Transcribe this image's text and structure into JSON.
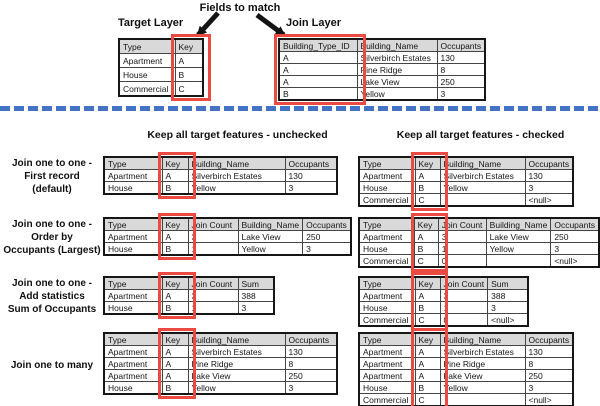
{
  "colors": {
    "highlight": "#ea4a42",
    "separator": "#4472c4",
    "header_fill": "#d9d9d9"
  },
  "top": {
    "fields_to_match_label": "Fields to match",
    "target_layer_label": "Target Layer",
    "join_layer_label": "Join Layer",
    "target_table": {
      "headers": [
        "Type",
        "Key"
      ],
      "rows": [
        [
          "Apartment",
          "A"
        ],
        [
          "House",
          "B"
        ],
        [
          "Commercial",
          "C"
        ]
      ]
    },
    "join_table": {
      "headers": [
        "Building_Type_ID",
        "Building_Name",
        "Occupants"
      ],
      "rows": [
        [
          "A",
          "Silverbirch Estates",
          "130"
        ],
        [
          "A",
          "Pine Ridge",
          "8"
        ],
        [
          "A",
          "Lake View",
          "250"
        ],
        [
          "B",
          "Yellow",
          "3"
        ]
      ]
    }
  },
  "section_headers": {
    "unchecked": "Keep all target features - unchecked",
    "checked": "Keep all target features - checked"
  },
  "join_examples": [
    {
      "label_lines": [
        "Join one to one -",
        "First record",
        "(default)"
      ],
      "unchecked_table": {
        "headers": [
          "Type",
          "Key",
          "Building_Name",
          "Occupants"
        ],
        "rows": [
          [
            "Apartment",
            "A",
            "Silverbirch Estates",
            "130"
          ],
          [
            "House",
            "B",
            "Yellow",
            "3"
          ]
        ]
      },
      "checked_table": {
        "headers": [
          "Type",
          "Key",
          "Building_Name",
          "Occupants"
        ],
        "rows": [
          [
            "Apartment",
            "A",
            "Silverbirch Estates",
            "130"
          ],
          [
            "House",
            "B",
            "Yellow",
            "3"
          ],
          [
            "Commercial",
            "C",
            "",
            "<null>"
          ]
        ]
      }
    },
    {
      "label_lines": [
        "Join one to one -",
        "Order by",
        "Occupants (Largest)"
      ],
      "unchecked_table": {
        "headers": [
          "Type",
          "Key",
          "Join Count",
          "Building_Name",
          "Occupants"
        ],
        "rows": [
          [
            "Apartment",
            "A",
            "3",
            "Lake View",
            "250"
          ],
          [
            "House",
            "B",
            "1",
            "Yellow",
            "3"
          ]
        ]
      },
      "checked_table": {
        "headers": [
          "Type",
          "Key",
          "Join Count",
          "Building_Name",
          "Occupants"
        ],
        "rows": [
          [
            "Apartment",
            "A",
            "3",
            "Lake View",
            "250"
          ],
          [
            "House",
            "B",
            "1",
            "Yellow",
            "3"
          ],
          [
            "Commercial",
            "C",
            "0",
            "",
            "<null>"
          ]
        ]
      }
    },
    {
      "label_lines": [
        "Join one to one -",
        "Add statistics",
        "Sum of Occupants"
      ],
      "unchecked_table": {
        "headers": [
          "Type",
          "Key",
          "Join Count",
          "Sum"
        ],
        "rows": [
          [
            "Apartment",
            "A",
            "3",
            "388"
          ],
          [
            "House",
            "B",
            "1",
            "3"
          ]
        ]
      },
      "checked_table": {
        "headers": [
          "Type",
          "Key",
          "Join Count",
          "Sum"
        ],
        "rows": [
          [
            "Apartment",
            "A",
            "3",
            "388"
          ],
          [
            "House",
            "B",
            "1",
            "3"
          ],
          [
            "Commercial",
            "C",
            "0",
            "<null>"
          ]
        ]
      }
    },
    {
      "label_lines": [
        "Join one to many"
      ],
      "unchecked_table": {
        "headers": [
          "Type",
          "Key",
          "Building_Name",
          "Occupants"
        ],
        "rows": [
          [
            "Apartment",
            "A",
            "Silverbirch Estates",
            "130"
          ],
          [
            "Apartment",
            "A",
            "Pine Ridge",
            "8"
          ],
          [
            "Apartment",
            "A",
            "Lake View",
            "250"
          ],
          [
            "House",
            "B",
            "Yellow",
            "3"
          ]
        ]
      },
      "checked_table": {
        "headers": [
          "Type",
          "Key",
          "Building_Name",
          "Occupants"
        ],
        "rows": [
          [
            "Apartment",
            "A",
            "Silverbirch Estates",
            "130"
          ],
          [
            "Apartment",
            "A",
            "Pine Ridge",
            "8"
          ],
          [
            "Apartment",
            "A",
            "Lake View",
            "250"
          ],
          [
            "House",
            "B",
            "Yellow",
            "3"
          ],
          [
            "Commercial",
            "C",
            "",
            "<null>"
          ]
        ]
      }
    }
  ]
}
